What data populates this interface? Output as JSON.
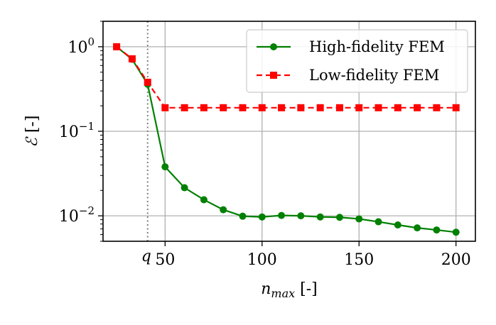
{
  "chart_data": {
    "type": "line",
    "x_scale": "linear",
    "y_scale": "log",
    "xlim": [
      18,
      210
    ],
    "ylim": [
      0.005,
      2.0
    ],
    "grid": true,
    "legend_position": "top-right",
    "xlabel": {
      "var": "n",
      "sub": "max",
      "unit": " [-]"
    },
    "ylabel": {
      "var": "ℰ",
      "unit": " [-]"
    },
    "x_ticks": [
      {
        "value": 50,
        "label": "50"
      },
      {
        "value": 100,
        "label": "100"
      },
      {
        "value": 150,
        "label": "150"
      },
      {
        "value": 200,
        "label": "200"
      }
    ],
    "y_ticks": [
      {
        "value": 1,
        "base": "10",
        "exp": "0"
      },
      {
        "value": 0.1,
        "base": "10",
        "exp": "−1"
      },
      {
        "value": 0.01,
        "base": "10",
        "exp": "−2"
      }
    ],
    "vline": {
      "x": 41,
      "label": "q",
      "color": "#808080"
    },
    "series": [
      {
        "name": "High-fidelity FEM",
        "color": "#008000",
        "linestyle": "solid",
        "marker": "circle",
        "x": [
          25,
          33,
          41,
          50,
          60,
          70,
          80,
          90,
          100,
          110,
          120,
          130,
          140,
          150,
          160,
          170,
          180,
          190,
          200
        ],
        "y": [
          1.0,
          0.71,
          0.36,
          0.038,
          0.0215,
          0.0155,
          0.0118,
          0.0099,
          0.0097,
          0.0101,
          0.01,
          0.0097,
          0.0096,
          0.0092,
          0.0085,
          0.0078,
          0.0072,
          0.0068,
          0.0064
        ]
      },
      {
        "name": "Low-fidelity FEM",
        "color": "#ff0000",
        "linestyle": "dashed",
        "marker": "square",
        "x": [
          25,
          33,
          41,
          50,
          60,
          70,
          80,
          90,
          100,
          110,
          120,
          130,
          140,
          150,
          160,
          170,
          180,
          190,
          200
        ],
        "y": [
          1.0,
          0.72,
          0.38,
          0.19,
          0.19,
          0.19,
          0.19,
          0.19,
          0.19,
          0.19,
          0.19,
          0.19,
          0.19,
          0.19,
          0.19,
          0.19,
          0.19,
          0.19,
          0.19
        ]
      }
    ]
  }
}
